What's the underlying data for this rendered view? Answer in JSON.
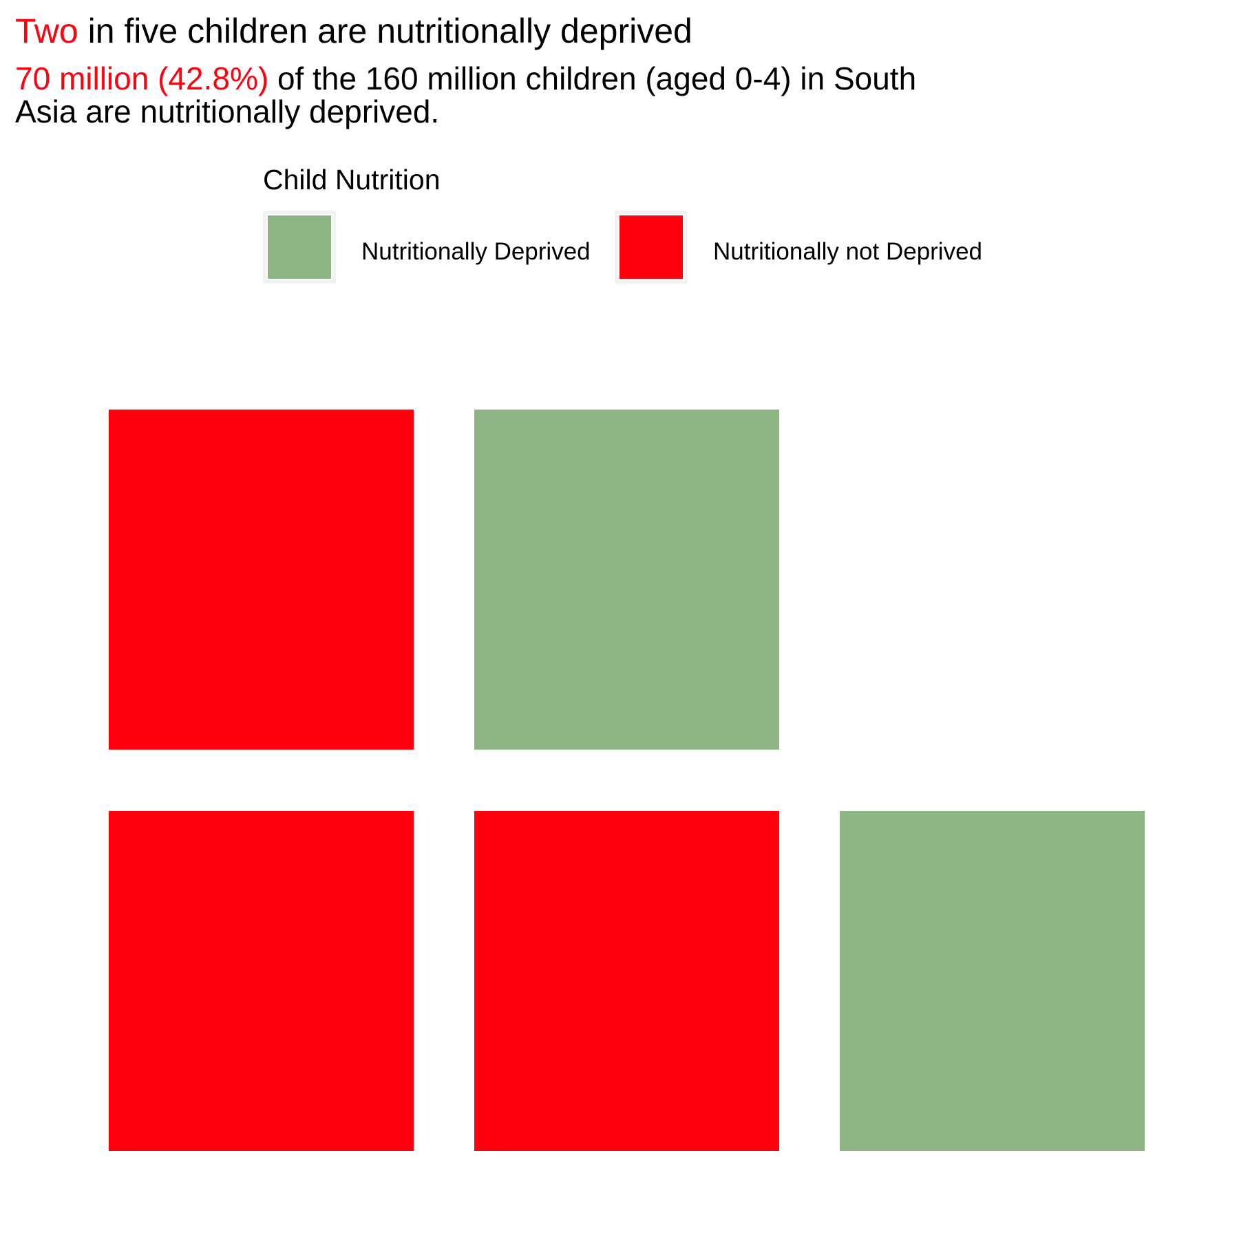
{
  "header": {
    "title_accent": "Two",
    "title_rest": " in five children are nutritionally deprived",
    "subtitle_accent": "70 million (42.8%)",
    "subtitle_rest": " of the 160 million children (aged 0-4) in South Asia are nutritionally deprived."
  },
  "legend": {
    "title": "Child Nutrition",
    "items": [
      {
        "label": "Nutritionally Deprived",
        "color": "#8fb584"
      },
      {
        "label": "Nutritionally not Deprived",
        "color": "#ff000f"
      }
    ]
  },
  "colors": {
    "accent": "#ff000f",
    "deprived": "#8fb584",
    "not_deprived": "#ff000f"
  },
  "chart_data": {
    "type": "waffle",
    "title": "Two in five children are nutritionally deprived",
    "categories": [
      "Nutritionally Deprived",
      "Nutritionally not Deprived"
    ],
    "values": [
      2,
      3
    ],
    "rows": [
      [
        "Nutritionally not Deprived",
        "Nutritionally Deprived"
      ],
      [
        "Nutritionally not Deprived",
        "Nutritionally not Deprived",
        "Nutritionally Deprived"
      ]
    ],
    "legend_position": "top",
    "grid": false
  }
}
